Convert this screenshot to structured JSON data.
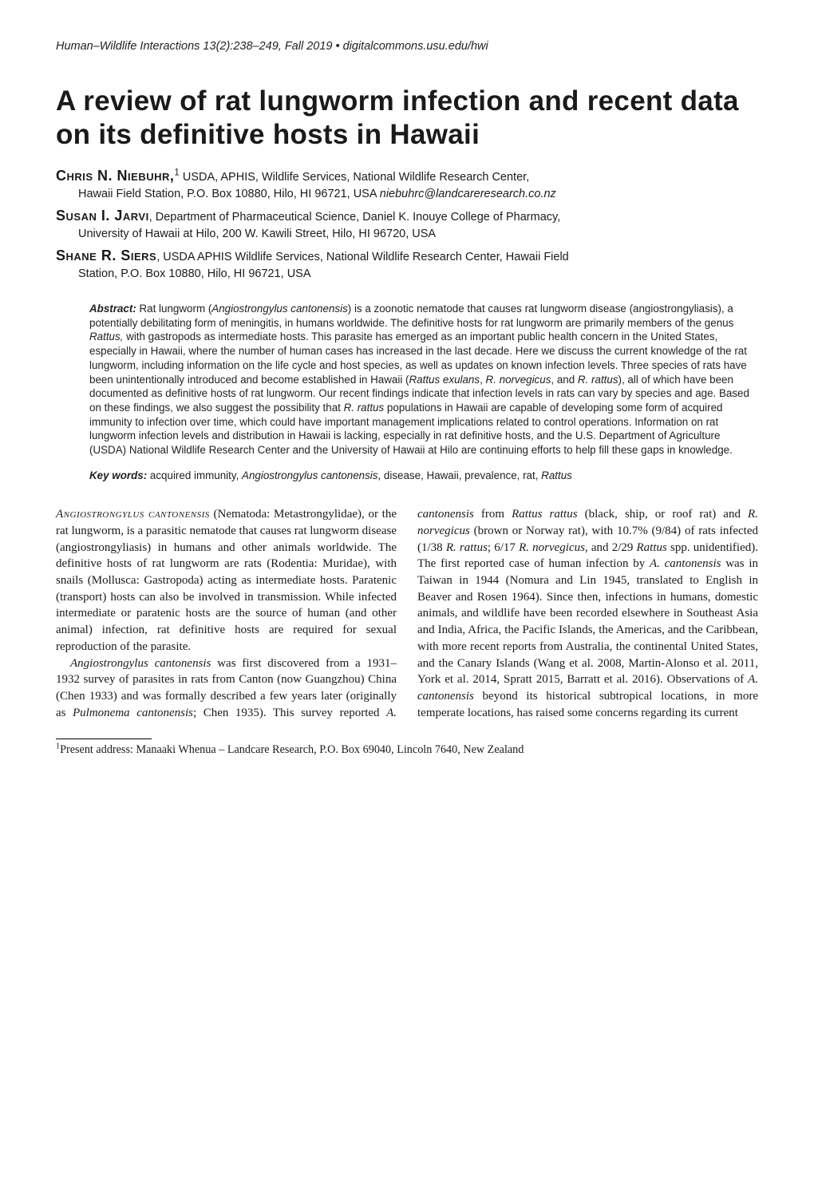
{
  "running_head": {
    "journal": "Human–Wildlife Interactions",
    "citation": " 13(2):238–249, Fall 2019 • digitalcommons.usu.edu/hwi"
  },
  "title": "A review of rat lungworm infection and recent data on its definitive hosts in Hawaii",
  "authors": [
    {
      "name": "Chris N. Niebuhr,",
      "sup": "1",
      "affil_inline": " USDA, APHIS, Wildlife Services, National Wildlife Research Center,",
      "affil_line2": "Hawaii Field Station, P.O. Box 10880, Hilo, HI 96721, USA  ",
      "email": "niebuhrc@landcareresearch.co.nz"
    },
    {
      "name": "Susan I. Jarvi",
      "sup": "",
      "affil_inline": ", Department of Pharmaceutical Science, Daniel K. Inouye College of Pharmacy,",
      "affil_line2": "University of Hawaii at Hilo, 200 W. Kawili Street, Hilo, HI 96720, USA",
      "email": ""
    },
    {
      "name": "Shane R. Siers",
      "sup": "",
      "affil_inline": ", USDA APHIS Wildlife Services, National Wildlife Research Center, Hawaii Field",
      "affil_line2": "Station, P.O. Box 10880, Hilo, HI 96721, USA",
      "email": ""
    }
  ],
  "abstract": {
    "label": "Abstract:",
    "text_before_ital1": " Rat lungworm (",
    "ital1": "Angiostrongylus cantonensis",
    "text_mid1": ") is a zoonotic nematode that causes rat lungworm disease (angiostrongyliasis), a potentially debilitating form of meningitis, in humans worldwide. The definitive hosts for rat lungworm are primarily members of the genus ",
    "ital2": "Rattus,",
    "text_mid2": " with gastropods as intermediate hosts. This parasite has emerged as an important public health concern in the United States, especially in Hawaii, where the number of human cases has increased in the last decade. Here we discuss the current knowledge of the rat lungworm, including information on the life cycle and host species, as well as updates on known infection levels. Three species of rats have been unintentionally introduced and become established in Hawaii (",
    "ital3": "Rattus exulans",
    "text_mid3": ", ",
    "ital4": "R. norvegicus",
    "text_mid4": ", and ",
    "ital5": "R. rattus",
    "text_mid5": "), all of which have been documented as definitive hosts of rat lungworm. Our recent findings indicate that infection levels in rats can vary by species and age. Based on these findings, we also suggest the possibility that ",
    "ital6": "R. rattus",
    "text_mid6": " populations in Hawaii are capable of developing some form of acquired immunity to infection over time, which could have important management implications related to control operations. Information on rat lungworm infection levels and distribution in Hawaii is lacking, especially in rat definitive hosts, and the U.S. Department of Agriculture (USDA) National Wildlife Research Center and the University of Hawaii at Hilo are continuing efforts to help fill these gaps in knowledge."
  },
  "keywords": {
    "label": "Key words:",
    "text_pre": " acquired immunity, ",
    "ital1": "Angiostrongylus cantonensis",
    "text_mid": ", disease, Hawaii, prevalence, rat, ",
    "ital2": "Rattus"
  },
  "body": {
    "leadword": "Angiostrongylus cantonensis",
    "p1_after_lead": " (Nematoda: Metastrongylidae), or the rat lungworm, is a parasitic nematode that causes rat lungworm disease (angiostrongyliasis) in humans and other animals worldwide. The definitive hosts of rat lungworm are rats (Rodentia: Muridae), with snails (Mollusca: Gastropoda) acting as intermediate hosts. Paratenic (transport) hosts can also be involved in transmission. While infected intermediate or paratenic hosts are the source of human (and other animal) infection, rat definitive hosts are required for sexual reproduction of the parasite.",
    "p2_a": "Angiostrongylus cantonensis",
    "p2_b": " was first disco­vered from a 1931–1932 survey of parasites in rats from Canton (now Guangzhou) China (Chen 1933) and was formally described a few years later (originally as ",
    "p2_c": "Pulmonema cantonensis",
    "p2_d": "; Chen 1935). This survey reported ",
    "p2_e": "A. cantonensis",
    "p2_f": " from ",
    "p2_g": "Rattus rattus",
    "p2_h": " (black, ship, or roof rat) and ",
    "p2_i": "R. norvegicus",
    "p2_j": " (brown or Norway rat), with 10.7% (9/84) of rats infected (1/38 ",
    "p2_k": "R. rattus",
    "p2_l": "; 6/17 ",
    "p2_m": "R. norvegicus",
    "p2_n": ", and 2/29 ",
    "p2_o": "Rattus",
    "p2_p": " spp. unidentified). The first reported case of human infection by ",
    "p2_q": "A. cantonensis",
    "p2_r": " was in Taiwan in 1944 (Nomura and Lin 1945, translated to English in Beaver and Rosen 1964). Since then, infections in humans, domestic animals, and wildlife have been recorded elsewhere in Southeast Asia and India, Africa, the Pacific Islands, the Americas, and the Caribbean, with more recent reports from Australia, the continental United States, and the Canary Islands (Wang et al. 2008, Martin-Alonso et al. 2011, York et al. 2014, Spratt 2015, Barratt et al. 2016). Observations of ",
    "p2_s": "A. cantonensis",
    "p2_t": " beyond its historical subtropical locations, in more temperate locations, has raised some concerns regarding its current"
  },
  "footnote": {
    "sup": "1",
    "text": "Present address: Manaaki Whenua – Landcare Research, P.O. Box 69040, Lincoln 7640, New Zealand"
  }
}
